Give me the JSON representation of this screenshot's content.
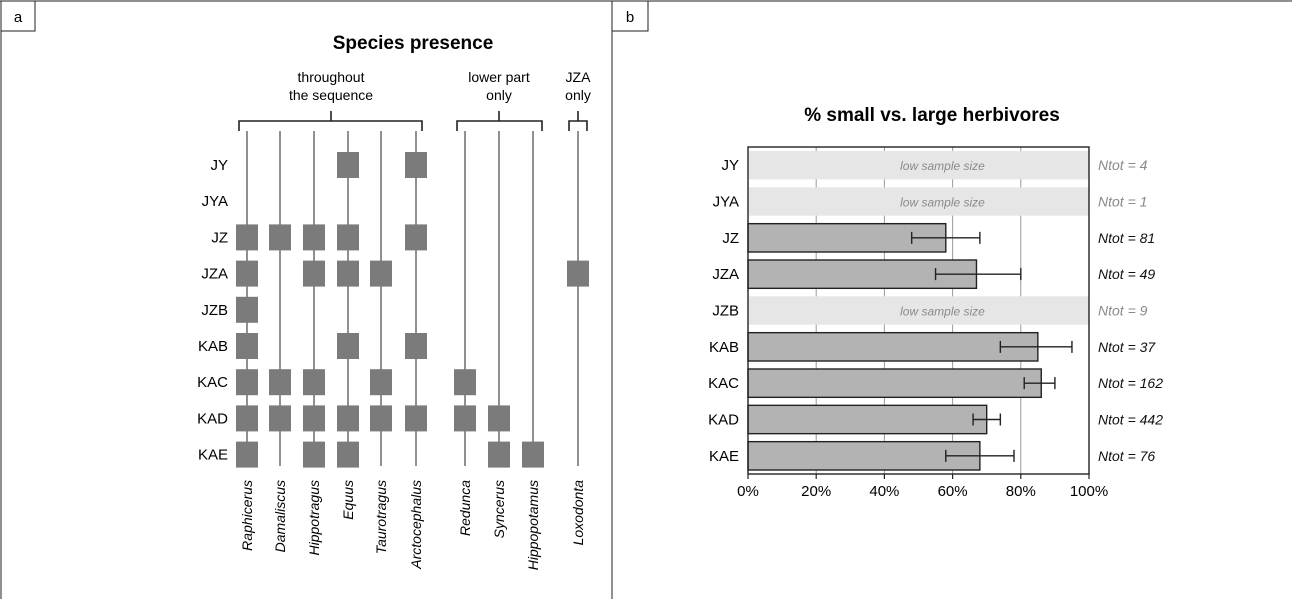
{
  "panels": {
    "a": {
      "label": "a"
    },
    "b": {
      "label": "b"
    }
  },
  "colors": {
    "presence_box": "#7b7b7b",
    "bar_fill": "#b3b3b3",
    "low_sample_fill": "#e6e6e6",
    "low_sample_text": "#8a8a8a",
    "line": "#222222",
    "grid": "#9a9a9a"
  },
  "chart_data": [
    {
      "type": "table",
      "title": "Species presence",
      "rows": [
        "JY",
        "JYA",
        "JZ",
        "JZA",
        "JZB",
        "KAB",
        "KAC",
        "KAD",
        "KAE"
      ],
      "groups": [
        {
          "label_lines": [
            "throughout",
            "the sequence"
          ],
          "species": [
            "Raphicerus",
            "Damaliscus",
            "Hippotragus",
            "Equus",
            "Taurotragus",
            "Arctocephalus"
          ]
        },
        {
          "label_lines": [
            "lower part",
            "only"
          ],
          "species": [
            "Redunca",
            "Syncerus",
            "Hippopotamus"
          ]
        },
        {
          "label_lines": [
            "JZA",
            "only"
          ],
          "species": [
            "Loxodonta"
          ]
        }
      ],
      "species": [
        "Raphicerus",
        "Damaliscus",
        "Hippotragus",
        "Equus",
        "Taurotragus",
        "Arctocephalus",
        "Redunca",
        "Syncerus",
        "Hippopotamus",
        "Loxodonta"
      ],
      "presence": {
        "JY": [
          "Equus",
          "Arctocephalus"
        ],
        "JYA": [],
        "JZ": [
          "Raphicerus",
          "Damaliscus",
          "Hippotragus",
          "Equus",
          "Arctocephalus"
        ],
        "JZA": [
          "Raphicerus",
          "Hippotragus",
          "Equus",
          "Taurotragus",
          "Loxodonta"
        ],
        "JZB": [
          "Raphicerus"
        ],
        "KAB": [
          "Raphicerus",
          "Equus",
          "Arctocephalus"
        ],
        "KAC": [
          "Raphicerus",
          "Damaliscus",
          "Hippotragus",
          "Taurotragus",
          "Redunca"
        ],
        "KAD": [
          "Raphicerus",
          "Damaliscus",
          "Hippotragus",
          "Equus",
          "Taurotragus",
          "Arctocephalus",
          "Redunca",
          "Syncerus"
        ],
        "KAE": [
          "Raphicerus",
          "Hippotragus",
          "Equus",
          "Syncerus",
          "Hippopotamus"
        ]
      }
    },
    {
      "type": "bar",
      "orientation": "horizontal",
      "title": "% small vs. large herbivores",
      "categories": [
        "JY",
        "JYA",
        "JZ",
        "JZA",
        "JZB",
        "KAB",
        "KAC",
        "KAD",
        "KAE"
      ],
      "values": [
        null,
        null,
        58,
        67,
        null,
        85,
        86,
        70,
        68
      ],
      "error_low": [
        null,
        null,
        48,
        55,
        null,
        74,
        81,
        66,
        58
      ],
      "error_high": [
        null,
        null,
        68,
        80,
        null,
        95,
        90,
        74,
        78
      ],
      "low_sample": [
        true,
        true,
        false,
        false,
        true,
        false,
        false,
        false,
        false
      ],
      "low_sample_text": "low sample size",
      "ntot_labels": [
        "Ntot = 4",
        "Ntot = 1",
        "Ntot = 81",
        "Ntot = 49",
        "Ntot = 9",
        "Ntot = 37",
        "Ntot = 162",
        "Ntot = 442",
        "Ntot = 76"
      ],
      "xlim": [
        0,
        100
      ],
      "xticks": [
        "0%",
        "20%",
        "40%",
        "60%",
        "80%",
        "100%"
      ],
      "grid": true
    }
  ]
}
